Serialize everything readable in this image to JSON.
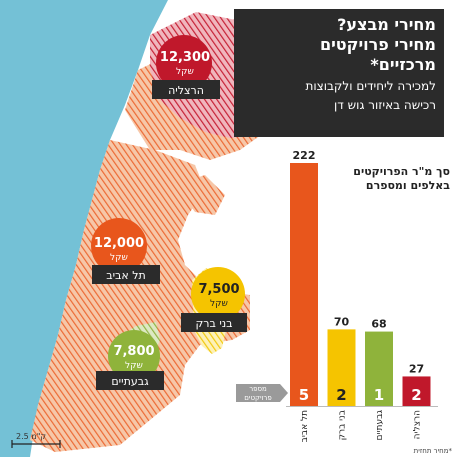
{
  "title": {
    "line1": "מחירי מבצע?",
    "line2": "מחירי פרויקטים",
    "line3": "מרכזיים*",
    "sub1": "למכירה ליחידים ולקבוצות",
    "sub2": "רכישה באיזור גוש דן"
  },
  "map_cities": [
    {
      "id": "herzliya",
      "name": "הרצליה",
      "price": "12,300",
      "unit": "שקל",
      "color": "#c0182b"
    },
    {
      "id": "tel-aviv",
      "name": "תל אביב",
      "price": "12,000",
      "unit": "שקל",
      "color": "#e8561c"
    },
    {
      "id": "bnei-brak",
      "name": "בני ברק",
      "price": "7,500",
      "unit": "שקל",
      "color": "#f5c400"
    },
    {
      "id": "givatayim",
      "name": "גבעתיים",
      "price": "7,800",
      "unit": "שקל",
      "color": "#8fb33b"
    }
  ],
  "legend_projects": {
    "line1": "מספר",
    "line2": "פרויקטים"
  },
  "scale": "2.5 ק\"מ",
  "credit": "*מחיר תחזית",
  "chart_data": {
    "type": "bar",
    "title": "סך מ\"ר הפרויקטים באלפים ומספרם",
    "title_lines": [
      "סך מ\"ר הפרויקטים",
      "באלפים ומספרם"
    ],
    "categories": [
      "תל אביב",
      "בני ברק",
      "גבעתיים",
      "הרצליה"
    ],
    "values": [
      222,
      70,
      68,
      27
    ],
    "project_counts": [
      5,
      2,
      1,
      2
    ],
    "colors": [
      "#e8561c",
      "#f5c400",
      "#8fb33b",
      "#c0182b"
    ],
    "ylim": [
      0,
      222
    ]
  }
}
